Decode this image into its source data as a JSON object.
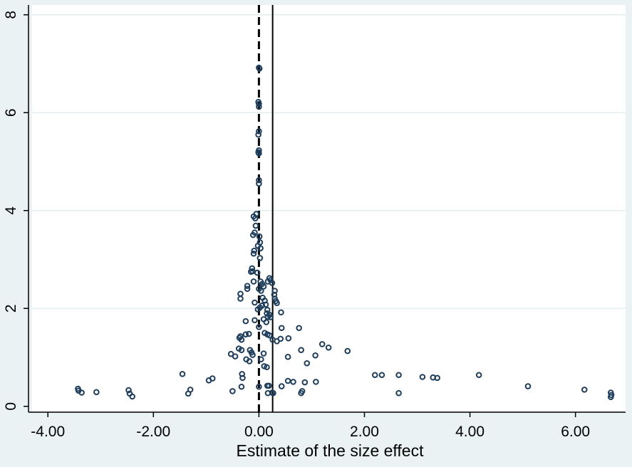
{
  "chart_data": {
    "type": "scatter",
    "title": "",
    "xlabel": "Estimate of the size effect",
    "ylabel": "",
    "xlim": [
      -4.3,
      6.95
    ],
    "ylim": [
      -0.12,
      8.2
    ],
    "x_ticks": [
      -4,
      -2,
      0,
      2,
      4,
      6
    ],
    "x_tick_labels": [
      "-4.00",
      "-2.00",
      "0.00",
      "2.00",
      "4.00",
      "6.00"
    ],
    "y_ticks": [
      0,
      2,
      4,
      6,
      8
    ],
    "y_tick_labels": [
      "0",
      "2",
      "4",
      "6",
      "8"
    ],
    "grid": "horizontal",
    "legend": "none",
    "reference_lines": [
      {
        "x": 0.0,
        "style": "dashed"
      },
      {
        "x": 0.26,
        "style": "solid"
      }
    ],
    "colors": {
      "background": "#eaf2f3",
      "plot_area": "#ffffff",
      "grid": "#e3ecee",
      "marker": "#1e3e5c"
    },
    "points": [
      [
        0.0,
        6.92
      ],
      [
        0.01,
        6.9
      ],
      [
        -0.01,
        6.22
      ],
      [
        0.0,
        6.18
      ],
      [
        0.0,
        6.12
      ],
      [
        0.0,
        5.62
      ],
      [
        -0.01,
        5.55
      ],
      [
        0.0,
        5.23
      ],
      [
        -0.01,
        5.19
      ],
      [
        0.0,
        5.17
      ],
      [
        0.0,
        4.62
      ],
      [
        0.0,
        4.55
      ],
      [
        -0.05,
        3.93
      ],
      [
        -0.1,
        3.88
      ],
      [
        -0.07,
        3.84
      ],
      [
        -0.06,
        3.69
      ],
      [
        -0.08,
        3.55
      ],
      [
        -0.11,
        3.5
      ],
      [
        0.01,
        3.47
      ],
      [
        0.02,
        3.35
      ],
      [
        -0.02,
        3.28
      ],
      [
        0.03,
        3.23
      ],
      [
        -0.09,
        3.18
      ],
      [
        -0.1,
        3.12
      ],
      [
        0.02,
        3.03
      ],
      [
        -0.13,
        2.82
      ],
      [
        -0.12,
        2.76
      ],
      [
        -0.15,
        2.75
      ],
      [
        -0.03,
        2.73
      ],
      [
        0.2,
        2.62
      ],
      [
        0.22,
        2.58
      ],
      [
        0.17,
        2.55
      ],
      [
        0.03,
        2.55
      ],
      [
        -0.1,
        2.55
      ],
      [
        0.06,
        2.5
      ],
      [
        0.25,
        2.52
      ],
      [
        0.09,
        2.45
      ],
      [
        -0.22,
        2.46
      ],
      [
        -0.22,
        2.4
      ],
      [
        0.0,
        2.4
      ],
      [
        0.04,
        2.36
      ],
      [
        0.3,
        2.36
      ],
      [
        -0.35,
        2.3
      ],
      [
        0.29,
        2.28
      ],
      [
        -0.35,
        2.2
      ],
      [
        0.3,
        2.2
      ],
      [
        0.07,
        2.22
      ],
      [
        0.11,
        2.16
      ],
      [
        0.32,
        2.15
      ],
      [
        -0.08,
        2.12
      ],
      [
        0.34,
        2.11
      ],
      [
        0.13,
        2.08
      ],
      [
        0.06,
        2.06
      ],
      [
        0.02,
        2.02
      ],
      [
        -0.02,
        1.98
      ],
      [
        0.16,
        1.97
      ],
      [
        0.42,
        1.92
      ],
      [
        0.15,
        1.9
      ],
      [
        0.2,
        1.87
      ],
      [
        0.17,
        1.83
      ],
      [
        0.22,
        1.82
      ],
      [
        0.09,
        1.78
      ],
      [
        -0.08,
        1.76
      ],
      [
        -0.25,
        1.74
      ],
      [
        0.14,
        1.72
      ],
      [
        0.0,
        1.62
      ],
      [
        0.43,
        1.6
      ],
      [
        0.76,
        1.6
      ],
      [
        -0.19,
        1.48
      ],
      [
        -0.25,
        1.47
      ],
      [
        0.11,
        1.5
      ],
      [
        0.16,
        1.47
      ],
      [
        0.2,
        1.45
      ],
      [
        -0.35,
        1.43
      ],
      [
        -0.37,
        1.4
      ],
      [
        0.41,
        1.38
      ],
      [
        0.56,
        1.39
      ],
      [
        -0.33,
        1.36
      ],
      [
        0.26,
        1.36
      ],
      [
        0.34,
        1.33
      ],
      [
        1.2,
        1.27
      ],
      [
        1.32,
        1.2
      ],
      [
        -0.38,
        1.18
      ],
      [
        -0.33,
        1.15
      ],
      [
        0.8,
        1.15
      ],
      [
        -0.17,
        1.15
      ],
      [
        -0.14,
        1.1
      ],
      [
        1.68,
        1.13
      ],
      [
        0.09,
        1.08
      ],
      [
        -0.53,
        1.07
      ],
      [
        -0.12,
        1.05
      ],
      [
        1.07,
        1.04
      ],
      [
        -0.45,
        1.02
      ],
      [
        0.55,
        1.01
      ],
      [
        -0.24,
        0.96
      ],
      [
        0.04,
        0.96
      ],
      [
        -0.18,
        0.92
      ],
      [
        0.91,
        0.88
      ],
      [
        0.1,
        0.82
      ],
      [
        0.15,
        0.8
      ],
      [
        -1.45,
        0.66
      ],
      [
        2.2,
        0.64
      ],
      [
        2.33,
        0.64
      ],
      [
        2.65,
        0.64
      ],
      [
        3.1,
        0.6
      ],
      [
        3.3,
        0.59
      ],
      [
        3.38,
        0.58
      ],
      [
        4.17,
        0.64
      ],
      [
        -0.32,
        0.66
      ],
      [
        -0.31,
        0.58
      ],
      [
        -0.88,
        0.57
      ],
      [
        -0.95,
        0.53
      ],
      [
        0.55,
        0.52
      ],
      [
        0.65,
        0.5
      ],
      [
        1.08,
        0.5
      ],
      [
        0.87,
        0.49
      ],
      [
        -0.33,
        0.4
      ],
      [
        0.0,
        0.4
      ],
      [
        0.16,
        0.42
      ],
      [
        0.19,
        0.42
      ],
      [
        0.43,
        0.41
      ],
      [
        5.1,
        0.41
      ],
      [
        6.17,
        0.34
      ],
      [
        -3.43,
        0.36
      ],
      [
        -3.42,
        0.32
      ],
      [
        -3.36,
        0.28
      ],
      [
        -3.08,
        0.29
      ],
      [
        -2.47,
        0.33
      ],
      [
        -2.45,
        0.26
      ],
      [
        -2.4,
        0.2
      ],
      [
        -1.3,
        0.34
      ],
      [
        -1.34,
        0.26
      ],
      [
        -0.5,
        0.31
      ],
      [
        0.82,
        0.31
      ],
      [
        0.8,
        0.27
      ],
      [
        0.27,
        0.27
      ],
      [
        0.25,
        0.28
      ],
      [
        0.17,
        0.27
      ],
      [
        2.65,
        0.27
      ],
      [
        6.67,
        0.28
      ],
      [
        6.68,
        0.23
      ],
      [
        6.67,
        0.19
      ]
    ]
  }
}
